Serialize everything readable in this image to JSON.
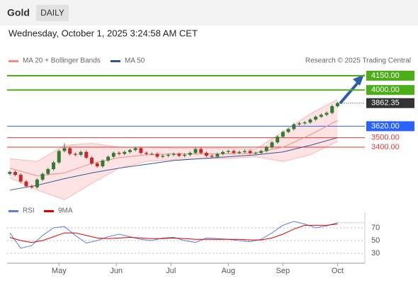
{
  "chart_data": {
    "type": "candlestick",
    "title": "Gold",
    "timeframe": "DAILY",
    "subtitle": "Wednesday, October 1, 2025 3:24:58 AM CET",
    "attribution": "Research © 2025 Trading Central",
    "up_color": "#2e7d32",
    "down_color": "#c62828",
    "xlim": [
      -0.5,
      65
    ],
    "ylim": [
      2866,
      4239
    ],
    "xticks": [
      {
        "value": 9,
        "label": "May"
      },
      {
        "value": 19.5,
        "label": "Jun"
      },
      {
        "value": 29.5,
        "label": "Jul"
      },
      {
        "value": 40,
        "label": "Aug"
      },
      {
        "value": 50,
        "label": "Sep"
      },
      {
        "value": 60,
        "label": "Oct"
      }
    ],
    "open": [
      3120,
      3140,
      3110,
      3040,
      2990,
      2980,
      3060,
      3120,
      3170,
      3240,
      3360,
      3390,
      3330,
      3320,
      3350,
      3290,
      3230,
      3200,
      3260,
      3300,
      3340,
      3330,
      3350,
      3370,
      3390,
      3340,
      3330,
      3330,
      3300,
      3310,
      3320,
      3330,
      3310,
      3320,
      3340,
      3380,
      3340,
      3310,
      3300,
      3330,
      3350,
      3360,
      3340,
      3350,
      3360,
      3340,
      3340,
      3360,
      3400,
      3450,
      3510,
      3560,
      3590,
      3640,
      3650,
      3660,
      3690,
      3720,
      3740,
      3760,
      3830
    ],
    "high": [
      3155,
      3155,
      3125,
      3055,
      3005,
      3075,
      3135,
      3185,
      3255,
      3375,
      3440,
      3405,
      3345,
      3365,
      3365,
      3305,
      3245,
      3275,
      3315,
      3355,
      3355,
      3365,
      3385,
      3405,
      3405,
      3355,
      3345,
      3345,
      3325,
      3335,
      3345,
      3345,
      3335,
      3355,
      3395,
      3395,
      3355,
      3325,
      3345,
      3365,
      3375,
      3375,
      3365,
      3375,
      3375,
      3355,
      3375,
      3415,
      3465,
      3525,
      3575,
      3605,
      3655,
      3665,
      3675,
      3705,
      3735,
      3755,
      3775,
      3845,
      3877
    ],
    "low": [
      3105,
      3095,
      3025,
      2975,
      2965,
      2965,
      3045,
      3105,
      3155,
      3225,
      3345,
      3315,
      3305,
      3305,
      3275,
      3215,
      3185,
      3185,
      3245,
      3285,
      3315,
      3315,
      3335,
      3355,
      3325,
      3315,
      3315,
      3285,
      3285,
      3295,
      3305,
      3295,
      3295,
      3305,
      3325,
      3325,
      3295,
      3285,
      3285,
      3315,
      3335,
      3325,
      3325,
      3335,
      3325,
      3325,
      3325,
      3345,
      3385,
      3435,
      3495,
      3545,
      3575,
      3625,
      3635,
      3645,
      3675,
      3705,
      3725,
      3745,
      3815
    ],
    "close": [
      3140,
      3110,
      3040,
      2990,
      2980,
      3060,
      3120,
      3170,
      3240,
      3360,
      3390,
      3330,
      3320,
      3350,
      3290,
      3230,
      3200,
      3260,
      3300,
      3340,
      3330,
      3350,
      3370,
      3390,
      3340,
      3330,
      3330,
      3300,
      3310,
      3320,
      3330,
      3310,
      3320,
      3340,
      3380,
      3340,
      3310,
      3300,
      3330,
      3350,
      3360,
      3340,
      3350,
      3360,
      3340,
      3340,
      3360,
      3400,
      3450,
      3510,
      3560,
      3590,
      3640,
      3650,
      3660,
      3690,
      3720,
      3740,
      3760,
      3830,
      3862.35
    ],
    "series": [
      {
        "name": "MA 20 + Bollinger Bands",
        "color": "#f28b82",
        "band_color": "#fde3e3",
        "x": [
          0,
          5,
          10,
          15,
          20,
          25,
          30,
          35,
          40,
          45,
          50,
          55,
          60
        ],
        "values": [
          3180,
          3100,
          3130,
          3230,
          3290,
          3320,
          3330,
          3330,
          3330,
          3340,
          3400,
          3530,
          3680
        ],
        "upper": [
          3280,
          3250,
          3420,
          3440,
          3400,
          3400,
          3390,
          3390,
          3390,
          3380,
          3560,
          3750,
          3900
        ],
        "lower": [
          3080,
          2950,
          2850,
          3020,
          3180,
          3250,
          3270,
          3280,
          3280,
          3300,
          3250,
          3320,
          3460
        ]
      },
      {
        "name": "MA 50",
        "color": "#2f5597",
        "x": [
          0,
          5,
          10,
          15,
          20,
          25,
          30,
          35,
          40,
          45,
          50,
          55,
          60
        ],
        "values": [
          2950,
          3000,
          3070,
          3130,
          3180,
          3220,
          3260,
          3280,
          3300,
          3320,
          3350,
          3420,
          3500
        ]
      }
    ],
    "levels": [
      {
        "value": 4150,
        "label": "4150.00",
        "color": "#4caf1a",
        "boxed": true
      },
      {
        "value": 4000,
        "label": "4000.00",
        "color": "#4caf1a",
        "boxed": true
      },
      {
        "value": 3620,
        "label": "3620.00",
        "color": "#2962ff",
        "boxed": true
      },
      {
        "value": 3500,
        "label": "3500.00",
        "color": "#e53935",
        "boxed": false
      },
      {
        "value": 3400,
        "label": "3400.00",
        "color": "#e53935",
        "boxed": false
      }
    ],
    "last_price": 3862.35,
    "rsi": {
      "type": "line",
      "ylim": [
        16.7,
        94.4
      ],
      "yticks": [
        70,
        50,
        30
      ],
      "series": [
        {
          "name": "RSI",
          "color": "#5b7fd6",
          "x": [
            0,
            2,
            4,
            6,
            8,
            10,
            12,
            14,
            16,
            18,
            20,
            22,
            24,
            26,
            28,
            30,
            32,
            34,
            36,
            38,
            40,
            42,
            44,
            46,
            48,
            50,
            52,
            54,
            56,
            58,
            60
          ],
          "values": [
            62,
            38,
            42,
            58,
            70,
            72,
            58,
            46,
            50,
            56,
            60,
            56,
            52,
            50,
            54,
            55,
            50,
            47,
            54,
            53,
            52,
            50,
            48,
            52,
            62,
            74,
            80,
            76,
            70,
            73,
            78
          ]
        },
        {
          "name": "9MA",
          "color": "#e00000",
          "x": [
            0,
            2,
            4,
            6,
            8,
            10,
            12,
            14,
            16,
            18,
            20,
            22,
            24,
            26,
            28,
            30,
            32,
            34,
            36,
            38,
            40,
            42,
            44,
            46,
            48,
            50,
            52,
            54,
            56,
            58,
            60
          ],
          "values": [
            55,
            50,
            47,
            50,
            56,
            62,
            62,
            58,
            54,
            53,
            54,
            55,
            54,
            53,
            53,
            54,
            53,
            52,
            52,
            52,
            52,
            52,
            51,
            51,
            54,
            60,
            68,
            74,
            74,
            74,
            76
          ]
        }
      ]
    }
  }
}
